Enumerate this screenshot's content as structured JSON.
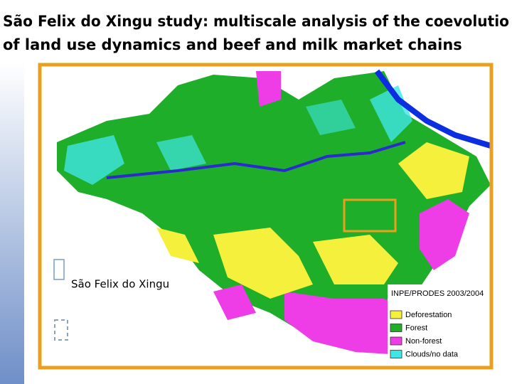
{
  "header": {
    "title_lines": [
      "São Felix do Xingu study: multiscale analysis of the coevolutio",
      "of land use dynamics and beef and milk market chains"
    ]
  },
  "caption": "São Felix do Xingu",
  "map": {
    "source": "INPE/PRODES 2003/2004",
    "legend": [
      {
        "label": "Deforestation",
        "color": "#f5f03c"
      },
      {
        "label": "Forest",
        "color": "#1fae2a"
      },
      {
        "label": "Non-forest",
        "color": "#ee3ce6"
      },
      {
        "label": "Clouds/no data",
        "color": "#3ee6e6"
      }
    ]
  }
}
